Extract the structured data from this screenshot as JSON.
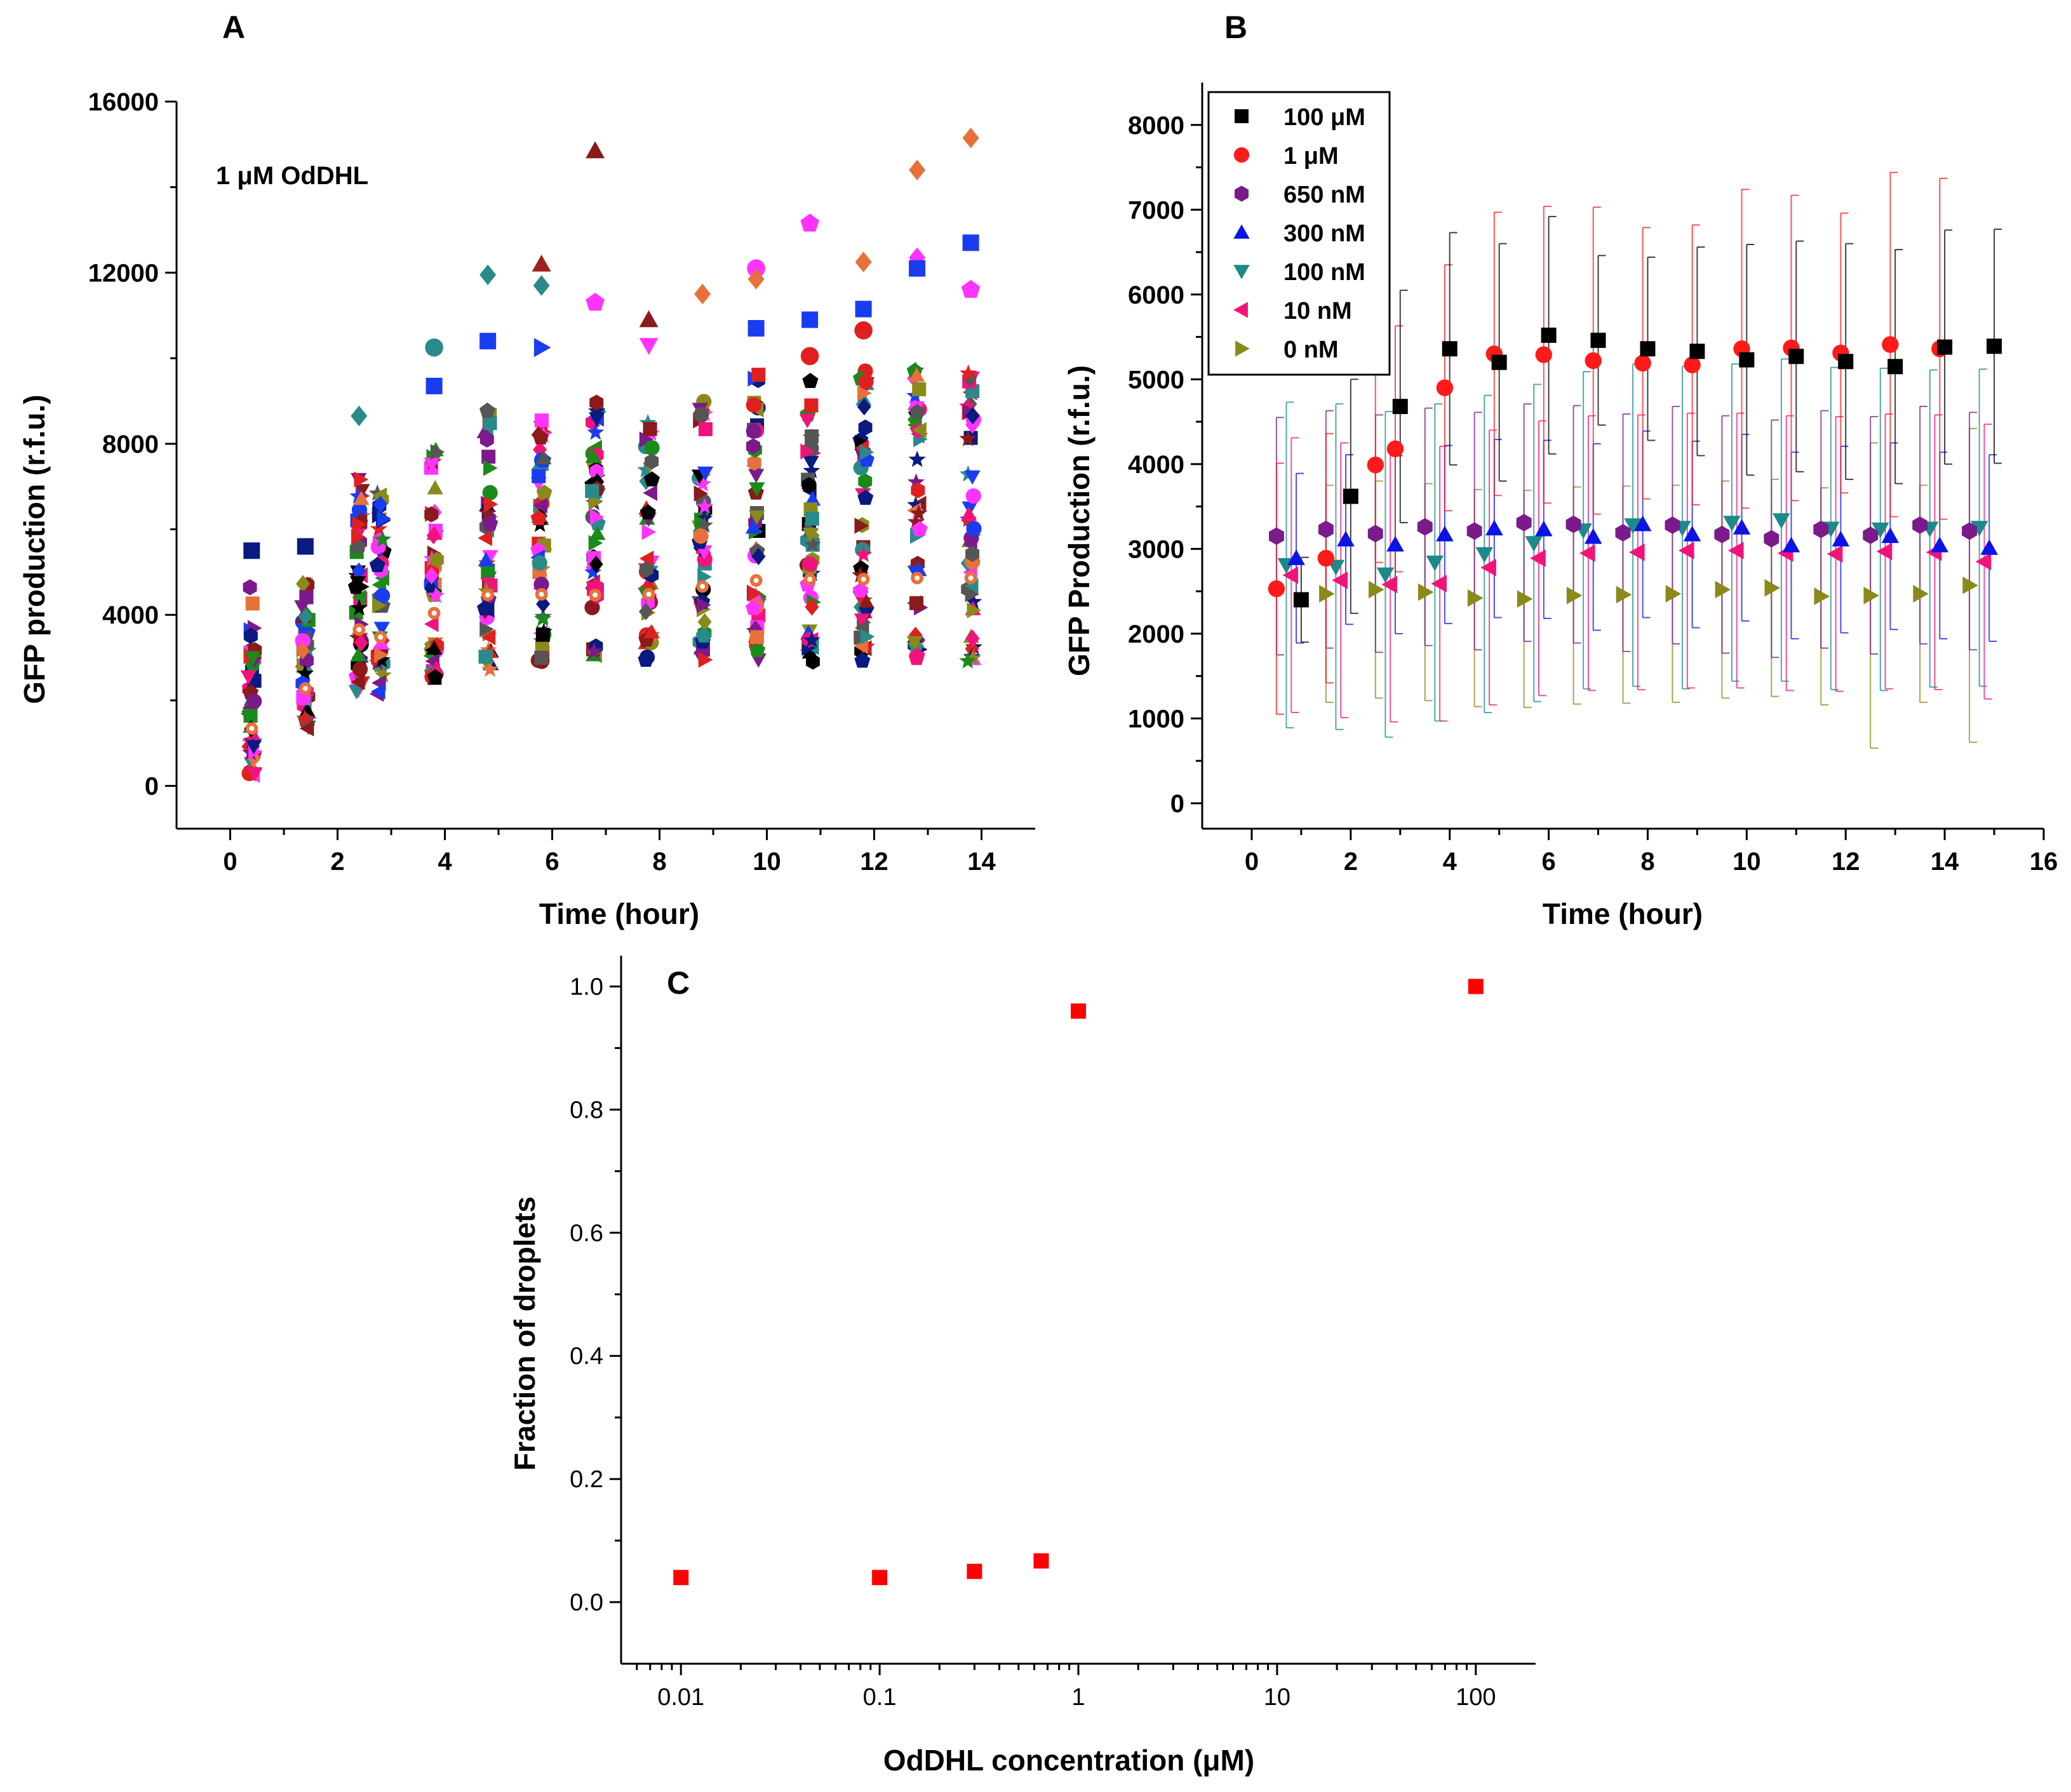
{
  "panel_labels": {
    "a": "A",
    "b": "B",
    "c": "C"
  },
  "chart_data": [
    {
      "panel": "A",
      "type": "scatter",
      "annotation": "1 μM OdDHL",
      "xlabel": "Time (hour)",
      "ylabel": "GFP production (r.f.u.)",
      "xlim": [
        -1,
        15
      ],
      "ylim": [
        -1000,
        16000
      ],
      "xticks": [
        0,
        2,
        4,
        6,
        8,
        10,
        12,
        14
      ],
      "yticks": [
        0,
        4000,
        8000,
        12000,
        16000
      ],
      "time_points": [
        0.4,
        1.4,
        2.4,
        2.8,
        3.8,
        4.8,
        5.8,
        6.8,
        7.8,
        8.8,
        9.8,
        10.8,
        11.8,
        12.8,
        13.8
      ],
      "point_min": [
        0,
        1300,
        2200,
        2150,
        2500,
        2700,
        2800,
        2700,
        2800,
        2900,
        2900,
        2900,
        2900,
        2900,
        2900
      ],
      "point_max": [
        4800,
        4800,
        7400,
        6900,
        8000,
        9000,
        8800,
        9000,
        8800,
        9200,
        9700,
        9800,
        9800,
        9900,
        9900
      ],
      "outliers": [
        {
          "x": 0.4,
          "y": 5500,
          "color": "#0a1a80",
          "marker": "square"
        },
        {
          "x": 1.4,
          "y": 5600,
          "color": "#0a1a80",
          "marker": "square"
        },
        {
          "x": 2.4,
          "y": 8650,
          "color": "#2a8a8a",
          "marker": "diamond"
        },
        {
          "x": 3.8,
          "y": 10250,
          "color": "#2a8a8a",
          "marker": "circle"
        },
        {
          "x": 3.8,
          "y": 9350,
          "color": "#1a3cf0",
          "marker": "square"
        },
        {
          "x": 4.8,
          "y": 11950,
          "color": "#2a8a8a",
          "marker": "diamond"
        },
        {
          "x": 4.8,
          "y": 10400,
          "color": "#1a3cf0",
          "marker": "square"
        },
        {
          "x": 5.8,
          "y": 12200,
          "color": "#a02020",
          "marker": "triangle"
        },
        {
          "x": 5.8,
          "y": 11700,
          "color": "#2a8a8a",
          "marker": "diamond"
        },
        {
          "x": 5.8,
          "y": 10250,
          "color": "#1a3cf0",
          "marker": "triangle-right"
        },
        {
          "x": 6.8,
          "y": 14850,
          "color": "#8b1a1a",
          "marker": "triangle"
        },
        {
          "x": 6.8,
          "y": 11300,
          "color": "#ff33ff",
          "marker": "pentagon"
        },
        {
          "x": 7.8,
          "y": 10900,
          "color": "#8b1a1a",
          "marker": "triangle"
        },
        {
          "x": 7.8,
          "y": 10300,
          "color": "#ff33ff",
          "marker": "triangle-down"
        },
        {
          "x": 8.8,
          "y": 11500,
          "color": "#e8703a",
          "marker": "diamond"
        },
        {
          "x": 9.8,
          "y": 12100,
          "color": "#ff33ff",
          "marker": "circle"
        },
        {
          "x": 9.8,
          "y": 11850,
          "color": "#e8703a",
          "marker": "diamond"
        },
        {
          "x": 9.8,
          "y": 10700,
          "color": "#1a3cf0",
          "marker": "square"
        },
        {
          "x": 10.8,
          "y": 13150,
          "color": "#ff33ff",
          "marker": "pentagon"
        },
        {
          "x": 10.8,
          "y": 10900,
          "color": "#1a3cf0",
          "marker": "square"
        },
        {
          "x": 10.8,
          "y": 10050,
          "color": "#e02020",
          "marker": "circle"
        },
        {
          "x": 11.8,
          "y": 12250,
          "color": "#e8703a",
          "marker": "diamond"
        },
        {
          "x": 11.8,
          "y": 11150,
          "color": "#1a3cf0",
          "marker": "square"
        },
        {
          "x": 11.8,
          "y": 10650,
          "color": "#e02020",
          "marker": "circle"
        },
        {
          "x": 12.8,
          "y": 14400,
          "color": "#e8703a",
          "marker": "diamond"
        },
        {
          "x": 12.8,
          "y": 12350,
          "color": "#ff33ff",
          "marker": "diamond"
        },
        {
          "x": 12.8,
          "y": 12100,
          "color": "#1a3cf0",
          "marker": "square"
        },
        {
          "x": 13.8,
          "y": 15150,
          "color": "#e8703a",
          "marker": "diamond"
        },
        {
          "x": 13.8,
          "y": 12700,
          "color": "#1a3cf0",
          "marker": "square"
        },
        {
          "x": 13.8,
          "y": 11600,
          "color": "#ff33ff",
          "marker": "pentagon"
        }
      ]
    },
    {
      "panel": "B",
      "type": "scatter",
      "error_bars": true,
      "xlabel": "Time (hour)",
      "ylabel": "GFP Production (r.f.u.)",
      "xlim": [
        -1,
        16
      ],
      "ylim": [
        -300,
        8500
      ],
      "xticks": [
        0,
        2,
        4,
        6,
        8,
        10,
        12,
        14,
        16
      ],
      "yticks": [
        0,
        1000,
        2000,
        3000,
        4000,
        5000,
        6000,
        7000,
        8000
      ],
      "series": [
        {
          "name": "100 μM",
          "color": "#000000",
          "marker": "square",
          "x": [
            1,
            2,
            3,
            4,
            5,
            6,
            7,
            8,
            9,
            10,
            11,
            12,
            13,
            14,
            15
          ],
          "y": [
            2400,
            3620,
            4680,
            5360,
            5200,
            5520,
            5460,
            5360,
            5330,
            5230,
            5270,
            5210,
            5150,
            5380,
            5390
          ],
          "err": [
            500,
            1380,
            1370,
            1370,
            1400,
            1400,
            1000,
            1080,
            1230,
            1360,
            1360,
            1390,
            1380,
            1380,
            1380
          ]
        },
        {
          "name": "1 μM",
          "color": "#ff1a1a",
          "marker": "circle",
          "x": [
            0.5,
            1.5,
            2.5,
            2.9,
            3.9,
            4.9,
            5.9,
            6.9,
            7.9,
            8.9,
            9.9,
            10.9,
            11.9,
            12.9,
            13.9
          ],
          "y": [
            2530,
            2890,
            3990,
            4180,
            4900,
            5300,
            5290,
            5220,
            5190,
            5170,
            5360,
            5370,
            5310,
            5410,
            5360
          ],
          "err": [
            1480,
            1470,
            1150,
            1450,
            1450,
            1670,
            1750,
            1810,
            1600,
            1650,
            1880,
            1800,
            1650,
            2030,
            2010
          ]
        },
        {
          "name": "650 nM",
          "color": "#7b1a8a",
          "marker": "hexagon",
          "x": [
            0.5,
            1.5,
            2.5,
            3.5,
            4.5,
            5.5,
            6.5,
            7.5,
            8.5,
            9.5,
            10.5,
            11.5,
            12.5,
            13.5,
            14.5
          ],
          "y": [
            3150,
            3230,
            3180,
            3260,
            3210,
            3310,
            3290,
            3190,
            3280,
            3170,
            3120,
            3230,
            3160,
            3280,
            3210
          ],
          "err": [
            1400,
            1400,
            1400,
            1400,
            1400,
            1400,
            1400,
            1400,
            1400,
            1400,
            1400,
            1400,
            1400,
            1400,
            1400
          ]
        },
        {
          "name": "300 nM",
          "color": "#0a14e6",
          "marker": "triangle",
          "x": [
            0.9,
            1.9,
            2.9,
            3.9,
            4.9,
            5.9,
            6.9,
            7.9,
            8.9,
            9.9,
            10.9,
            11.9,
            12.9,
            13.9,
            14.9
          ],
          "y": [
            2890,
            3110,
            3050,
            3170,
            3240,
            3230,
            3140,
            3290,
            3170,
            3250,
            3040,
            3110,
            3150,
            3040,
            3010
          ],
          "err": [
            1000,
            1000,
            1050,
            1050,
            1050,
            1050,
            1100,
            1100,
            1100,
            1100,
            1100,
            1100,
            1100,
            1100,
            1100
          ]
        },
        {
          "name": "100 nM",
          "color": "#1a8a8a",
          "marker": "triangle-down",
          "x": [
            0.7,
            1.7,
            2.7,
            3.7,
            4.7,
            5.7,
            6.7,
            7.7,
            8.7,
            9.7,
            10.7,
            11.7,
            12.7,
            13.7,
            14.7
          ],
          "y": [
            2810,
            2790,
            2700,
            2840,
            2940,
            3070,
            3220,
            3280,
            3250,
            3310,
            3340,
            3240,
            3230,
            3240,
            3250
          ],
          "err": [
            1920,
            1920,
            1920,
            1870,
            1870,
            1870,
            1870,
            1900,
            1900,
            1870,
            1900,
            1900,
            1900,
            1870,
            1870
          ]
        },
        {
          "name": "10 nM",
          "color": "#f0147a",
          "marker": "triangle-left",
          "x": [
            0.8,
            1.8,
            2.8,
            3.8,
            4.8,
            5.8,
            6.8,
            7.8,
            8.8,
            9.8,
            10.8,
            11.8,
            12.8,
            13.8,
            14.8
          ],
          "y": [
            2690,
            2630,
            2580,
            2590,
            2780,
            2890,
            2950,
            2960,
            2980,
            2980,
            2950,
            2940,
            2970,
            2960,
            2850
          ],
          "err": [
            1620,
            1620,
            1620,
            1620,
            1620,
            1620,
            1620,
            1620,
            1620,
            1620,
            1620,
            1620,
            1620,
            1620,
            1620
          ]
        },
        {
          "name": "0 nM",
          "color": "#8a8a1a",
          "marker": "triangle-right",
          "x": [
            1.5,
            2.5,
            3.5,
            4.5,
            5.5,
            6.5,
            7.5,
            8.5,
            9.5,
            10.5,
            11.5,
            12.5,
            13.5,
            14.5
          ],
          "y": [
            2470,
            2520,
            2490,
            2420,
            2410,
            2450,
            2460,
            2470,
            2520,
            2540,
            2440,
            2450,
            2470,
            2570
          ],
          "err": [
            1280,
            1280,
            1280,
            1280,
            1280,
            1280,
            1280,
            1280,
            1280,
            1280,
            1280,
            1800,
            1280,
            1850
          ]
        }
      ]
    },
    {
      "panel": "C",
      "type": "scatter",
      "xscale": "log",
      "xlabel": "OdDHL concentration (μM)",
      "ylabel": "Fraction of droplets",
      "xlim": [
        0.005,
        200
      ],
      "ylim": [
        -0.1,
        1.05
      ],
      "xticks": [
        0.01,
        0.1,
        1,
        10,
        100
      ],
      "xticklabels": [
        "0.01",
        "0.1",
        "1",
        "10",
        "100"
      ],
      "yticks": [
        0,
        0.2,
        0.4,
        0.6,
        0.8,
        1.0
      ],
      "yticklabels": [
        "0.0",
        "0.2",
        "0.4",
        "0.6",
        "0.8",
        "1.0"
      ],
      "color": "#ff0000",
      "x": [
        0.01,
        0.1,
        0.3,
        0.65,
        1,
        100
      ],
      "y": [
        0.04,
        0.04,
        0.05,
        0.067,
        0.96,
        1.0
      ]
    }
  ]
}
